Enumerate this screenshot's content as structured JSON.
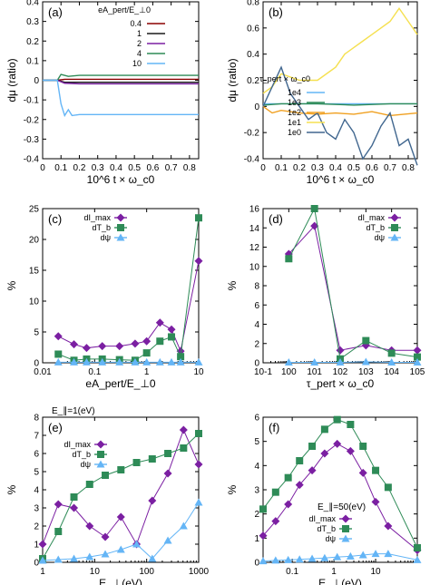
{
  "chart_data": [
    {
      "panel": "(a)",
      "type": "line",
      "xlabel": "10^6 t × ω_c0",
      "ylabel": "dμ (ratio)",
      "xlim": [
        0,
        0.85
      ],
      "ylim": [
        -0.4,
        0.4
      ],
      "xticks": [
        "0",
        "0.1",
        "0.2",
        "0.3",
        "0.4",
        "0.5",
        "0.6",
        "0.7",
        "0.8"
      ],
      "yticks": [
        "-0.4",
        "-0.3",
        "-0.2",
        "-0.1",
        "0",
        "0.1",
        "0.2",
        "0.3",
        "0.4"
      ],
      "legend_title": "eA_pert/E_⊥0",
      "legend_position": "top-right",
      "series": [
        {
          "name": "0.4",
          "color": "#8b0000",
          "x": [
            0,
            0.08,
            0.12,
            0.2,
            0.4,
            0.6,
            0.85
          ],
          "y": [
            0,
            0,
            0.005,
            0.005,
            0.005,
            0.005,
            0.005
          ]
        },
        {
          "name": "1",
          "color": "#1a1a1a",
          "x": [
            0,
            0.08,
            0.12,
            0.2,
            0.4,
            0.6,
            0.85
          ],
          "y": [
            0,
            0,
            -0.01,
            -0.01,
            -0.01,
            -0.01,
            -0.01
          ]
        },
        {
          "name": "2",
          "color": "#7b1fa2",
          "x": [
            0,
            0.08,
            0.12,
            0.2,
            0.4,
            0.6,
            0.85
          ],
          "y": [
            0,
            0,
            -0.015,
            -0.018,
            -0.018,
            -0.018,
            -0.018
          ]
        },
        {
          "name": "4",
          "color": "#2e8b57",
          "x": [
            0,
            0.08,
            0.1,
            0.14,
            0.2,
            0.4,
            0.6,
            0.85
          ],
          "y": [
            0,
            0,
            0.03,
            0.02,
            0.025,
            0.025,
            0.025,
            0.025
          ]
        },
        {
          "name": "10",
          "color": "#64b5f6",
          "x": [
            0,
            0.08,
            0.1,
            0.12,
            0.14,
            0.16,
            0.2,
            0.4,
            0.6,
            0.85
          ],
          "y": [
            0,
            0,
            -0.12,
            -0.18,
            -0.15,
            -0.18,
            -0.175,
            -0.175,
            -0.175,
            -0.175
          ]
        }
      ]
    },
    {
      "panel": "(b)",
      "type": "line",
      "xlabel": "10^6 t × ω_c0",
      "ylabel": "dμ (ratio)",
      "xlim": [
        0,
        0.85
      ],
      "ylim": [
        -0.4,
        0.8
      ],
      "xticks": [
        "0",
        "0.1",
        "0.2",
        "0.3",
        "0.4",
        "0.5",
        "0.6",
        "0.7",
        "0.8"
      ],
      "yticks": [
        "-0.4",
        "-0.2",
        "0",
        "0.2",
        "0.4",
        "0.6",
        "0.8"
      ],
      "legend_title": "τ_pert × ω_c0",
      "legend_position": "bottom-left",
      "series": [
        {
          "name": "1e4",
          "color": "#64b5f6",
          "x": [
            0,
            0.1,
            0.3,
            0.5,
            0.7,
            0.85
          ],
          "y": [
            0.02,
            0.02,
            0.02,
            0.02,
            0.02,
            0.02
          ]
        },
        {
          "name": "1e3",
          "color": "#2e8b57",
          "x": [
            0,
            0.1,
            0.3,
            0.5,
            0.7,
            0.85
          ],
          "y": [
            0.01,
            0.02,
            0.02,
            0.01,
            0.02,
            0.02
          ]
        },
        {
          "name": "1e2",
          "color": "#f0a020",
          "x": [
            0,
            0.05,
            0.1,
            0.2,
            0.3,
            0.4,
            0.5,
            0.6,
            0.7,
            0.85
          ],
          "y": [
            0,
            -0.05,
            -0.03,
            -0.05,
            -0.06,
            -0.05,
            -0.06,
            -0.04,
            -0.07,
            -0.05
          ]
        },
        {
          "name": "1e1",
          "color": "#f5e050",
          "x": [
            0,
            0.05,
            0.1,
            0.2,
            0.3,
            0.4,
            0.45,
            0.5,
            0.55,
            0.6,
            0.7,
            0.75,
            0.8,
            0.85
          ],
          "y": [
            0.1,
            0.15,
            0.25,
            0.2,
            0.2,
            0.3,
            0.4,
            0.45,
            0.5,
            0.55,
            0.65,
            0.75,
            0.65,
            0.55
          ]
        },
        {
          "name": "1e0",
          "color": "#41678f",
          "x": [
            0,
            0.05,
            0.1,
            0.15,
            0.2,
            0.25,
            0.3,
            0.35,
            0.4,
            0.45,
            0.5,
            0.55,
            0.6,
            0.65,
            0.7,
            0.75,
            0.8,
            0.85
          ],
          "y": [
            0,
            0.15,
            0.3,
            0.1,
            0.0,
            -0.1,
            -0.05,
            -0.2,
            -0.25,
            -0.1,
            -0.2,
            -0.4,
            -0.3,
            -0.15,
            -0.05,
            -0.3,
            -0.25,
            -0.45
          ]
        }
      ]
    },
    {
      "panel": "(c)",
      "type": "line",
      "xlabel": "eA_pert/E_⊥0",
      "ylabel": "%",
      "xscale": "log",
      "xlim": [
        0.01,
        10
      ],
      "ylim": [
        0,
        25
      ],
      "xticks": [
        "0.01",
        "0.1",
        "1",
        "10"
      ],
      "yticks": [
        "0",
        "5",
        "10",
        "15",
        "20",
        "25"
      ],
      "legend_position": "top-left",
      "series": [
        {
          "name": "dI_max",
          "color": "#7b1fa2",
          "marker": "diamond",
          "x": [
            0.02,
            0.04,
            0.07,
            0.14,
            0.3,
            0.6,
            1.0,
            1.8,
            3.0,
            4.5,
            10
          ],
          "y": [
            4.3,
            3.0,
            2.4,
            2.7,
            2.7,
            3.1,
            3.5,
            6.5,
            5.4,
            1.9,
            16.5
          ]
        },
        {
          "name": "dT_b",
          "color": "#2e8b57",
          "marker": "square",
          "x": [
            0.02,
            0.04,
            0.07,
            0.14,
            0.3,
            0.6,
            1.0,
            1.8,
            3.0,
            4.5,
            10
          ],
          "y": [
            1.4,
            0.4,
            0.6,
            0.6,
            0.5,
            0.4,
            1.6,
            3.5,
            4.2,
            1.0,
            23.5
          ]
        },
        {
          "name": "dψ",
          "color": "#64b5f6",
          "marker": "triangle",
          "x": [
            0.02,
            0.04,
            0.07,
            0.14,
            0.3,
            0.6,
            1.0,
            1.8,
            3.0,
            4.5,
            10
          ],
          "y": [
            0.1,
            0.1,
            0.1,
            0.1,
            0.1,
            0.1,
            0.1,
            0.1,
            0.1,
            0.1,
            0.1
          ]
        }
      ]
    },
    {
      "panel": "(d)",
      "type": "line",
      "xlabel": "τ_pert × ω_c0",
      "ylabel": "%",
      "xscale": "log",
      "xlim": [
        0.1,
        100000
      ],
      "ylim": [
        0,
        16
      ],
      "xticks": [
        "10-1",
        "100",
        "101",
        "102",
        "103",
        "104",
        "105"
      ],
      "yticks": [
        "0",
        "2",
        "4",
        "6",
        "8",
        "10",
        "12",
        "14",
        "16"
      ],
      "legend_position": "top-right",
      "series": [
        {
          "name": "dI_max",
          "color": "#7b1fa2",
          "marker": "diamond",
          "x": [
            1,
            10,
            100,
            1000,
            10000,
            100000
          ],
          "y": [
            11.3,
            14.2,
            1.3,
            1.8,
            1.3,
            1.3
          ]
        },
        {
          "name": "dT_b",
          "color": "#2e8b57",
          "marker": "square",
          "x": [
            1,
            10,
            100,
            1000,
            10000,
            100000
          ],
          "y": [
            10.8,
            16.0,
            0.4,
            2.3,
            1.0,
            0.6
          ]
        },
        {
          "name": "dψ",
          "color": "#64b5f6",
          "marker": "triangle",
          "x": [
            1,
            10,
            100,
            1000,
            10000,
            100000
          ],
          "y": [
            0.05,
            0.05,
            0.05,
            0.1,
            0.05,
            0.05
          ]
        }
      ]
    },
    {
      "panel": "(e)",
      "type": "line",
      "annotation": "E_∥=1(eV)",
      "xlabel": "E_⊥(eV)",
      "ylabel": "%",
      "xscale": "log",
      "xlim": [
        1,
        1000
      ],
      "ylim": [
        0,
        8
      ],
      "xticks": [
        "1",
        "10",
        "100",
        "1000"
      ],
      "yticks": [
        "0",
        "1",
        "2",
        "3",
        "4",
        "5",
        "6",
        "7",
        "8"
      ],
      "legend_position": "top-left",
      "series": [
        {
          "name": "dI_max",
          "color": "#7b1fa2",
          "marker": "diamond",
          "x": [
            1,
            2,
            4,
            8,
            16,
            32,
            64,
            128,
            256,
            512,
            1000
          ],
          "y": [
            1.0,
            3.2,
            3.0,
            2.0,
            1.4,
            2.5,
            1.0,
            3.4,
            4.9,
            7.3,
            5.4
          ]
        },
        {
          "name": "dT_b",
          "color": "#2e8b57",
          "marker": "square",
          "x": [
            1,
            2,
            4,
            8,
            16,
            32,
            64,
            128,
            256,
            512,
            1000
          ],
          "y": [
            0.2,
            1.7,
            3.6,
            4.3,
            4.8,
            5.1,
            5.5,
            5.7,
            6.0,
            6.3,
            7.1
          ]
        },
        {
          "name": "dψ",
          "color": "#64b5f6",
          "marker": "triangle",
          "x": [
            1,
            2,
            4,
            8,
            16,
            32,
            64,
            128,
            256,
            512,
            1000
          ],
          "y": [
            0.1,
            0.15,
            0.2,
            0.3,
            0.45,
            0.7,
            1.0,
            0.2,
            1.2,
            2.0,
            3.3
          ]
        }
      ]
    },
    {
      "panel": "(f)",
      "type": "line",
      "annotation": "E_∥=50(eV)",
      "xlabel": "E_⊥(eV)",
      "ylabel": "%",
      "xscale": "log",
      "xlim": [
        0.02,
        100
      ],
      "ylim": [
        0,
        6
      ],
      "xticks": [
        "0.1",
        "1",
        "10"
      ],
      "yticks": [
        "0",
        "1",
        "2",
        "3",
        "4",
        "5",
        "6"
      ],
      "legend_position": "center",
      "series": [
        {
          "name": "dI_max",
          "color": "#7b1fa2",
          "marker": "diamond",
          "x": [
            0.02,
            0.04,
            0.08,
            0.15,
            0.3,
            0.6,
            1.2,
            2.5,
            5,
            10,
            20,
            100
          ],
          "y": [
            1.1,
            1.7,
            2.4,
            3.2,
            3.8,
            4.5,
            4.9,
            4.6,
            3.7,
            2.5,
            1.5,
            0.5
          ]
        },
        {
          "name": "dT_b",
          "color": "#2e8b57",
          "marker": "square",
          "x": [
            0.02,
            0.04,
            0.08,
            0.15,
            0.3,
            0.6,
            1.2,
            2.5,
            5,
            10,
            20,
            100
          ],
          "y": [
            2.2,
            2.9,
            3.5,
            4.2,
            4.8,
            5.5,
            5.9,
            5.7,
            4.8,
            3.8,
            3.1,
            0.6
          ]
        },
        {
          "name": "dψ",
          "color": "#64b5f6",
          "marker": "triangle",
          "x": [
            0.02,
            0.04,
            0.08,
            0.15,
            0.3,
            0.6,
            1.2,
            2.5,
            5,
            10,
            20,
            100
          ],
          "y": [
            0.05,
            0.08,
            0.1,
            0.12,
            0.15,
            0.18,
            0.22,
            0.25,
            0.3,
            0.35,
            0.35,
            0.1
          ]
        }
      ]
    }
  ]
}
